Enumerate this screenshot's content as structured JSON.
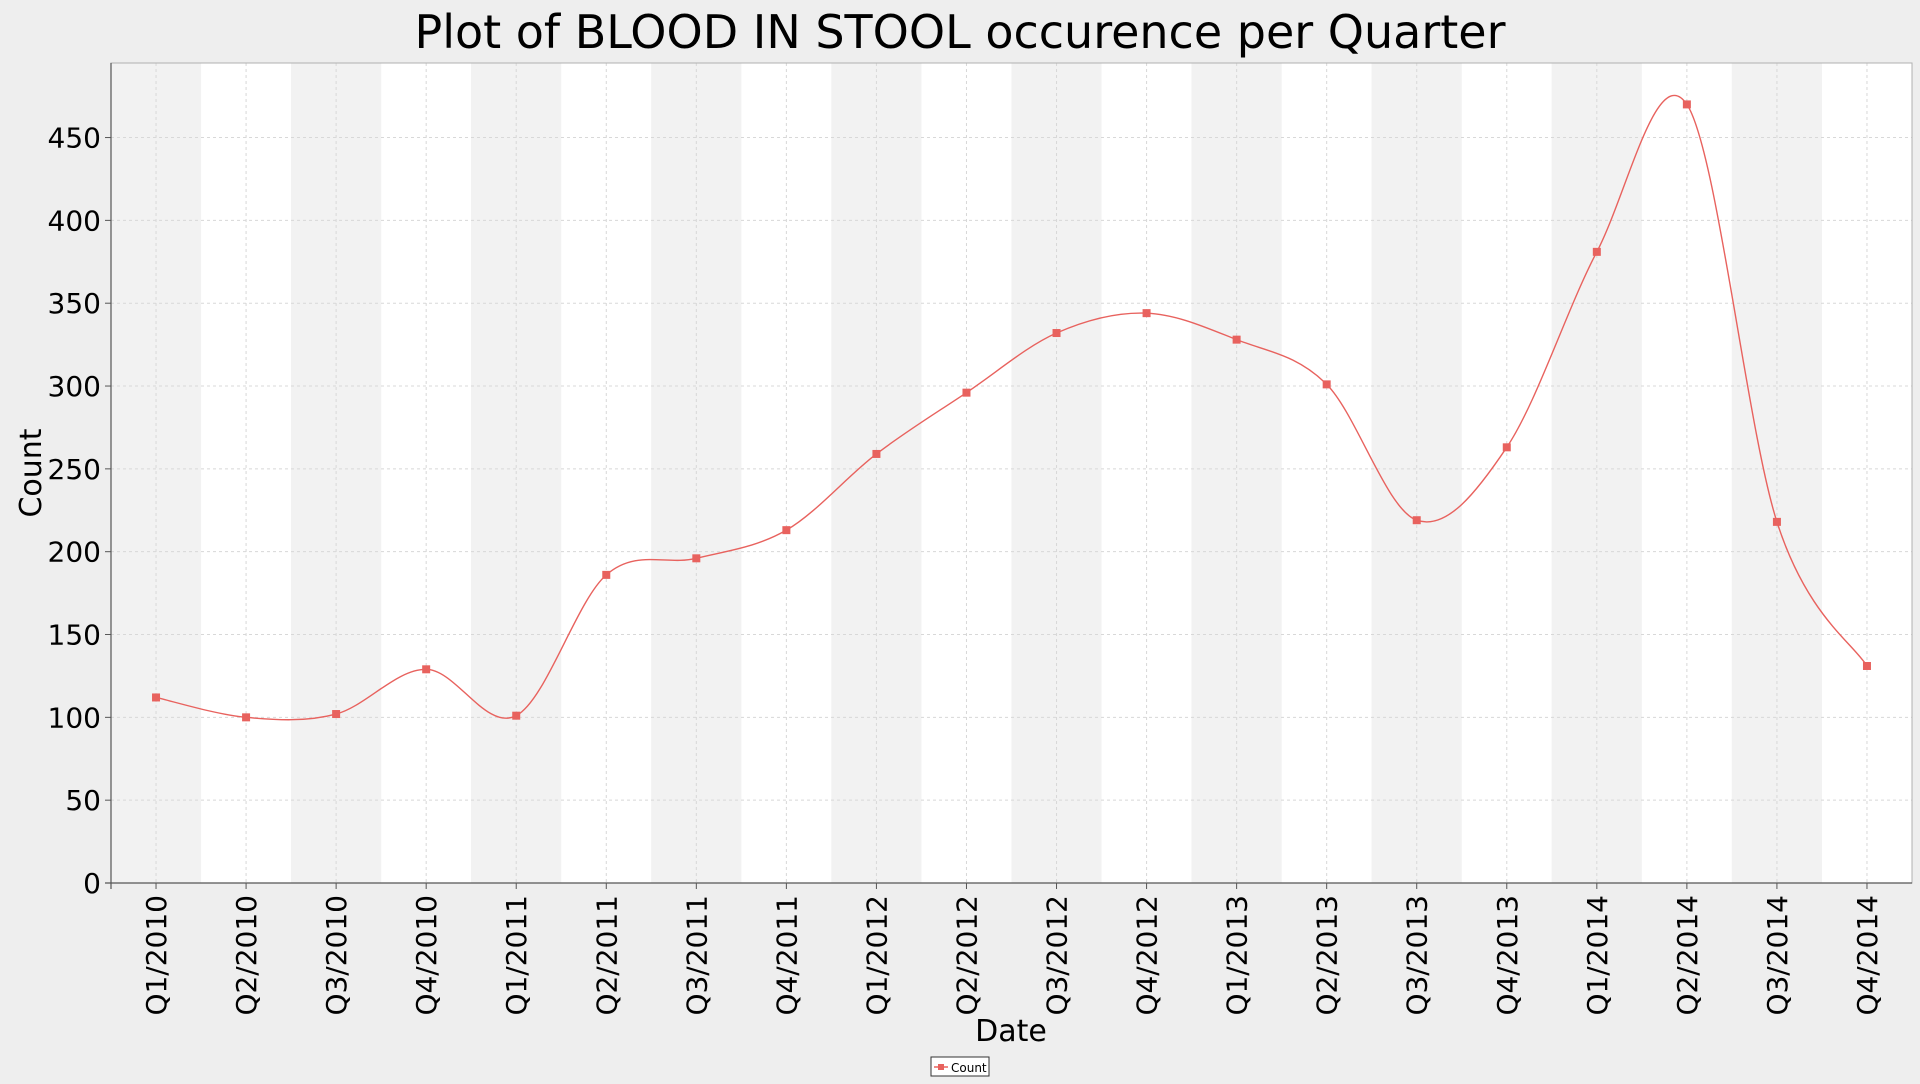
{
  "chart_data": {
    "type": "line",
    "title": "Plot of BLOOD IN STOOL occurence per Quarter",
    "xlabel": "Date",
    "ylabel": "Count",
    "ylim": [
      0,
      495
    ],
    "yticks": [
      0,
      50,
      100,
      150,
      200,
      250,
      300,
      350,
      400,
      450
    ],
    "categories": [
      "Q1/2010",
      "Q2/2010",
      "Q3/2010",
      "Q4/2010",
      "Q1/2011",
      "Q2/2011",
      "Q3/2011",
      "Q4/2011",
      "Q1/2012",
      "Q2/2012",
      "Q3/2012",
      "Q4/2012",
      "Q1/2013",
      "Q2/2013",
      "Q3/2013",
      "Q4/2013",
      "Q1/2014",
      "Q2/2014",
      "Q3/2014",
      "Q4/2014"
    ],
    "series": [
      {
        "name": "Count",
        "values": [
          112,
          100,
          102,
          129,
          101,
          186,
          196,
          213,
          259,
          296,
          332,
          344,
          328,
          301,
          219,
          263,
          381,
          470,
          218,
          131
        ]
      }
    ],
    "grid": true,
    "legend_position": "bottom-center",
    "colors": {
      "line": "#e8625e",
      "band_alt": "#f2f2f2",
      "band": "#ffffff",
      "background": "#eeeeee",
      "grid": "#d8d8d8"
    }
  }
}
